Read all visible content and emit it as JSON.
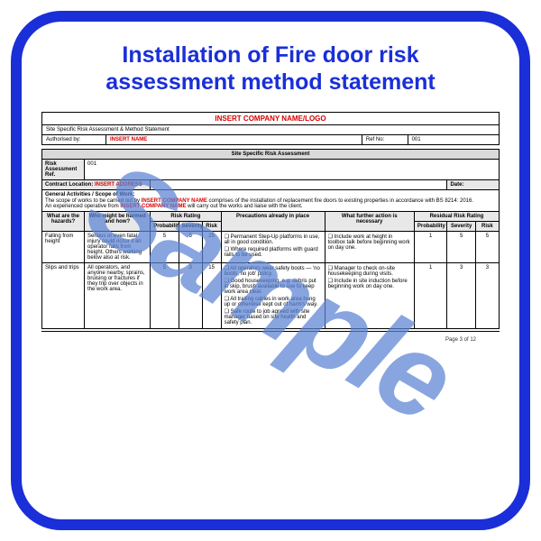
{
  "title_line1": "Installation of Fire door risk",
  "title_line2": "assessment  method statement",
  "watermark": "Sample",
  "header": {
    "company_logo": "INSERT COMPANY NAME/LOGO",
    "subtitle": "Site Specific Risk Assessment & Method Statement",
    "auth_label": "Authorised by:",
    "auth_value": "INSERT NAME",
    "refno_label": "Ref No:",
    "refno_value": "001"
  },
  "main": {
    "big_title": "Site Specific Risk Assessment",
    "ra_ref_label": "Risk Assessment Ref.",
    "ra_ref_value": "001",
    "loc_label": "Contract Location:",
    "loc_value": "INSERT ADDRESS",
    "date_label": "Date:",
    "scope_header": "General Activities / Scope of Work:",
    "scope_pre": "The scope of works to be carried out by ",
    "scope_co": "INSERT COMPANY NAME",
    "scope_mid": " comprises of the installation of replacement fire doors to existing properties in accordance with BS 8214: 2016.",
    "scope_line2a": "An experienced operative from ",
    "scope_line2b": " will carry out the works and liaise with the client."
  },
  "cols": {
    "hazards": "What are the hazards?",
    "who": "Who might be harmed and how?",
    "risk_rating": "Risk Rating",
    "prob": "Probability",
    "sev": "Severity",
    "risk": "Risk",
    "precautions": "Precautions already in place",
    "further": "What further action is necessary",
    "residual": "Residual Risk Rating"
  },
  "rows": [
    {
      "hazard": "Falling from height",
      "who": "Serious or even fatal injury could occur if an operator falls from height. Others working below also at risk.",
      "prob": "5",
      "sev": "5",
      "risk": "25",
      "precautions": [
        "Permanent Step-Up platforms in use, all in good condition.",
        "Where required platforms with guard rails to be used."
      ],
      "further": [
        "Include work at height in toolbox talk before beginning work on day one."
      ],
      "rprob": "1",
      "rsev": "5",
      "rrisk": "5"
    },
    {
      "hazard": "Slips and trips",
      "who": "All operators, and anyone nearby, sprains, bruising or fractures if they trip over objects in the work area.",
      "prob": "5",
      "sev": "3",
      "risk": "15",
      "precautions": [
        "All operators wear safety boots — 'no boots, no job' policy.",
        "Good housekeeping, e.g. debris put in skip, brush available to use to keep work area clear.",
        "All trailing cables in work area hung up or otherwise kept out of harm's way.",
        "Safe route to job agreed with site manager based on site health and safety plan."
      ],
      "further": [
        "Manager to check on-site housekeeping during visits.",
        "Include in site induction before beginning work on day one."
      ],
      "rprob": "1",
      "rsev": "3",
      "rrisk": "3"
    }
  ],
  "footer": "Page 3 of 12",
  "colors": {
    "frame": "#1a2fd8",
    "accent_red": "#d90000",
    "row_hdr_bg": "#e8e8e8",
    "title_bg": "#d9d9d9",
    "watermark": "rgba(90,130,210,0.72)"
  }
}
